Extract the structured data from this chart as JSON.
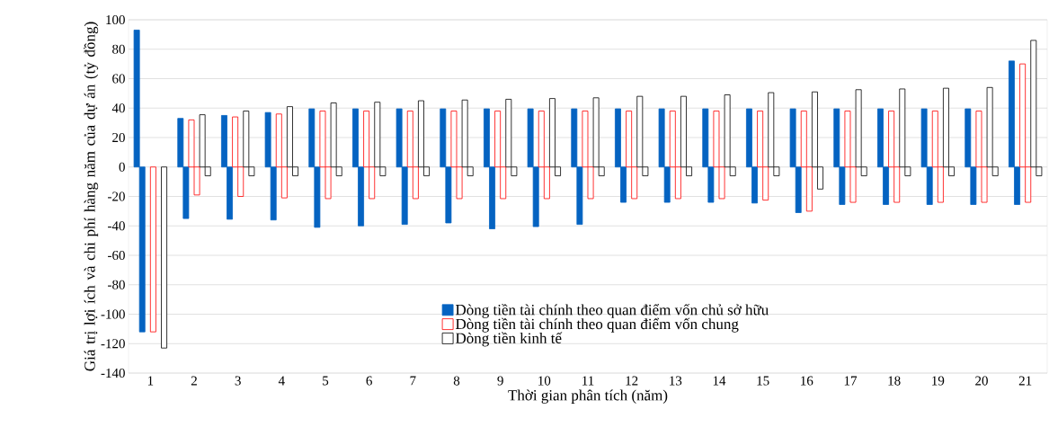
{
  "chart_data": {
    "type": "bar",
    "xlabel": "Thời gian phân tích (năm)",
    "ylabel": "Giá trị lợi ích và chi phí hàng năm của dự án (tỷ đồng)",
    "categories": [
      "1",
      "2",
      "3",
      "4",
      "5",
      "6",
      "7",
      "8",
      "9",
      "10",
      "11",
      "12",
      "13",
      "14",
      "15",
      "16",
      "17",
      "18",
      "19",
      "20",
      "21"
    ],
    "series": [
      {
        "name": "Dòng tiền tài chính theo quan điểm vốn chủ sở hữu",
        "color": "#0563c1",
        "values": [
          93,
          33,
          35,
          37,
          39.5,
          39.5,
          39.5,
          39.5,
          39.5,
          39.5,
          39.5,
          39.5,
          39.5,
          39.5,
          39.5,
          39.5,
          39.5,
          39.5,
          39.5,
          39.5,
          72
        ]
      },
      {
        "color": "#0563c1",
        "values": [
          -112,
          -35,
          -35.5,
          -36,
          -41,
          -40,
          -39,
          -38,
          -42,
          -40.5,
          -39,
          -24,
          -24,
          -24,
          -24.5,
          -31,
          -25.5,
          -25.5,
          -25.5,
          -25.5,
          -25.5
        ]
      },
      {
        "name": "Dòng tiền tài chính theo quan điểm vốn chung",
        "color": "#ff0000",
        "values": [
          null,
          32,
          34,
          36,
          38,
          38,
          38,
          38,
          38,
          38,
          38,
          38,
          38,
          38,
          38,
          38,
          38,
          38,
          38,
          38,
          70
        ]
      },
      {
        "color": "#ff0000",
        "values": [
          -112,
          -19,
          -20,
          -21,
          -21.5,
          -21.5,
          -21.5,
          -21.5,
          -21.5,
          -21.5,
          -21.5,
          -21.5,
          -21.5,
          -21.5,
          -22.5,
          -30,
          -24,
          -24,
          -24,
          -24,
          -24
        ]
      },
      {
        "name": "Dòng tiền kinh tế",
        "color": "#000000",
        "values": [
          null,
          35.5,
          38,
          41,
          43.5,
          44,
          45,
          45.5,
          46,
          46.5,
          47,
          48,
          48,
          49,
          50.5,
          51,
          52.5,
          53,
          53.5,
          54,
          86
        ]
      },
      {
        "color": "#000000",
        "values": [
          -123,
          -6,
          -6,
          -6,
          -6,
          -6,
          -6,
          -6,
          -6,
          -6,
          -6,
          -6,
          -6,
          -6,
          -6,
          -15,
          -6,
          -6,
          -6,
          -6,
          -6
        ]
      }
    ],
    "ylim": [
      -140,
      100
    ],
    "yticks": [
      -140,
      -120,
      -100,
      -80,
      -60,
      -40,
      -20,
      0,
      20,
      40,
      60,
      80,
      100
    ],
    "grid": "y",
    "legend": "bottom"
  }
}
